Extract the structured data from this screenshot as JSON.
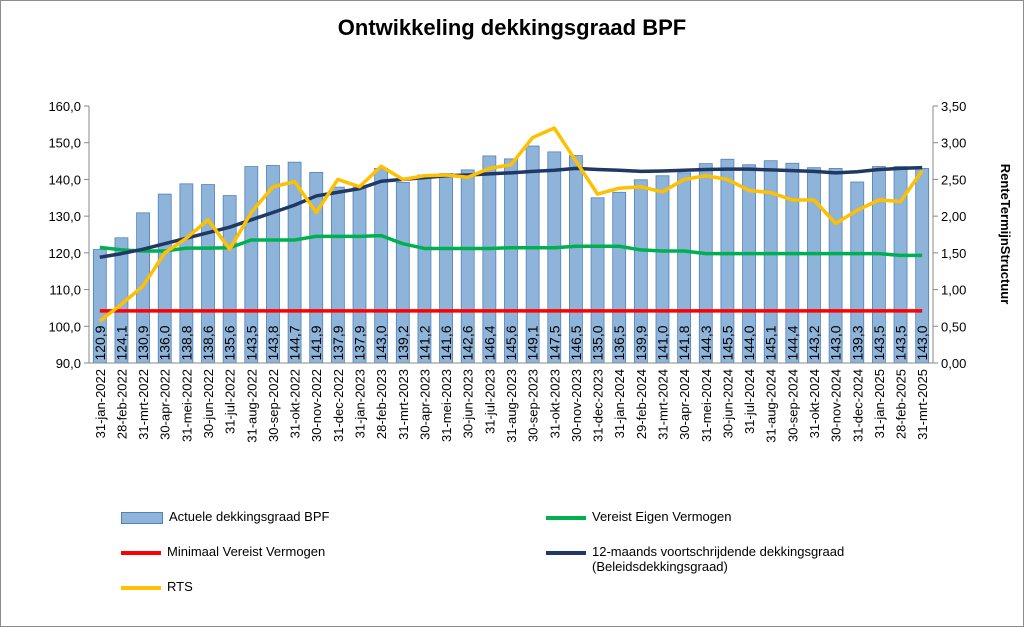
{
  "chart_data": {
    "type": "combo",
    "title": "Ontwikkeling dekkingsgraad BPF",
    "y2label": "RenteTermijnStructuur",
    "categories": [
      "31-jan-2022",
      "28-feb-2022",
      "31-mrt-2022",
      "30-apr-2022",
      "31-mei-2022",
      "30-jun-2022",
      "31-jul-2022",
      "31-aug-2022",
      "30-sep-2022",
      "31-okt-2022",
      "30-nov-2022",
      "31-dec-2022",
      "31-jan-2023",
      "28-feb-2023",
      "31-mrt-2023",
      "30-apr-2023",
      "31-mei-2023",
      "30-jun-2023",
      "31-jul-2023",
      "31-aug-2023",
      "30-sep-2023",
      "31-okt-2023",
      "30-nov-2023",
      "31-dec-2023",
      "31-jan-2024",
      "29-feb-2024",
      "31-mrt-2024",
      "30-apr-2024",
      "31-mei-2024",
      "30-jun-2024",
      "31-jul-2024",
      "31-aug-2024",
      "30-sep-2024",
      "31-okt-2024",
      "30-nov-2024",
      "31-dec-2024",
      "31-jan-2025",
      "28-feb-2025",
      "31-mrt-2025"
    ],
    "series": [
      {
        "name": "Actuele dekkingsgraad BPF",
        "type": "bar",
        "color": "#8fb4d9",
        "values": [
          120.9,
          124.1,
          130.9,
          136.0,
          138.8,
          138.6,
          135.6,
          143.5,
          143.8,
          144.7,
          141.9,
          137.9,
          137.9,
          143.0,
          139.2,
          141.2,
          141.6,
          142.6,
          146.4,
          145.6,
          149.1,
          147.5,
          146.5,
          135.0,
          136.5,
          139.9,
          141.0,
          141.8,
          144.3,
          145.5,
          144.0,
          145.1,
          144.4,
          143.2,
          143.0,
          139.3,
          143.5,
          143.5,
          143.0
        ],
        "value_labels": [
          "120,9",
          "124,1",
          "130,9",
          "136,0",
          "138,8",
          "138,6",
          "135,6",
          "143,5",
          "143,8",
          "144,7",
          "141,9",
          "137,9",
          "137,9",
          "143,0",
          "139,2",
          "141,2",
          "141,6",
          "142,6",
          "146,4",
          "145,6",
          "149,1",
          "147,5",
          "146,5",
          "135,0",
          "136,5",
          "139,9",
          "141,0",
          "141,8",
          "144,3",
          "145,5",
          "144,0",
          "145,1",
          "144,4",
          "143,2",
          "143,0",
          "139,3",
          "143,5",
          "143,5",
          "143,0"
        ]
      },
      {
        "name": "Vereist Eigen Vermogen",
        "type": "line",
        "color": "#00b050",
        "values": [
          121.5,
          120.8,
          120.5,
          120.5,
          121.3,
          121.3,
          121.4,
          123.5,
          123.5,
          123.5,
          124.5,
          124.5,
          124.5,
          124.7,
          122.5,
          121.2,
          121.2,
          121.2,
          121.2,
          121.4,
          121.4,
          121.4,
          121.8,
          121.8,
          121.8,
          120.8,
          120.5,
          120.5,
          119.8,
          119.8,
          119.8,
          119.8,
          119.8,
          119.8,
          119.8,
          119.8,
          119.8,
          119.3,
          119.3
        ]
      },
      {
        "name": "Minimaal Vereist Vermogen",
        "type": "line",
        "color": "#ff0000",
        "values": [
          104.2,
          104.2,
          104.2,
          104.2,
          104.2,
          104.2,
          104.2,
          104.2,
          104.2,
          104.2,
          104.2,
          104.2,
          104.2,
          104.2,
          104.2,
          104.2,
          104.2,
          104.2,
          104.2,
          104.2,
          104.2,
          104.2,
          104.2,
          104.2,
          104.2,
          104.2,
          104.2,
          104.2,
          104.2,
          104.2,
          104.2,
          104.2,
          104.2,
          104.2,
          104.2,
          104.2,
          104.2,
          104.2,
          104.2
        ]
      },
      {
        "name": "12-maands voortschrijdende dekkingsgraad (Beleidsdekkingsgraad)",
        "type": "line",
        "color": "#1f3864",
        "values": [
          118.8,
          119.8,
          121.0,
          122.5,
          124.0,
          125.5,
          127.0,
          129.0,
          131.0,
          133.0,
          135.5,
          136.5,
          137.5,
          139.5,
          140.0,
          140.5,
          141.0,
          141.2,
          141.5,
          141.8,
          142.2,
          142.5,
          143.0,
          142.7,
          142.5,
          142.2,
          142.3,
          142.5,
          142.7,
          142.8,
          142.8,
          142.6,
          142.4,
          142.2,
          141.8,
          142.1,
          142.7,
          143.0,
          143.2
        ]
      },
      {
        "name": "RTS",
        "type": "line",
        "color": "#ffc000",
        "axis": "y2",
        "values": [
          0.57,
          0.8,
          1.05,
          1.5,
          1.7,
          1.95,
          1.55,
          2.05,
          2.4,
          2.47,
          2.05,
          2.5,
          2.4,
          2.68,
          2.5,
          2.55,
          2.56,
          2.53,
          2.65,
          2.7,
          3.07,
          3.2,
          2.75,
          2.3,
          2.38,
          2.4,
          2.33,
          2.5,
          2.55,
          2.5,
          2.35,
          2.32,
          2.22,
          2.22,
          1.9,
          2.08,
          2.22,
          2.2,
          2.62
        ]
      }
    ],
    "ylim": [
      90,
      160
    ],
    "yticks": [
      {
        "value": 90,
        "label": "90,0"
      },
      {
        "value": 100,
        "label": "100,0"
      },
      {
        "value": 110,
        "label": "110,0"
      },
      {
        "value": 120,
        "label": "120,0"
      },
      {
        "value": 130,
        "label": "130,0"
      },
      {
        "value": 140,
        "label": "140,0"
      },
      {
        "value": 150,
        "label": "150,0"
      },
      {
        "value": 160,
        "label": "160,0"
      }
    ],
    "y2lim": [
      0,
      3.5
    ],
    "y2ticks": [
      {
        "value": 0,
        "label": "0,00"
      },
      {
        "value": 0.5,
        "label": "0,50"
      },
      {
        "value": 1,
        "label": "1,00"
      },
      {
        "value": 1.5,
        "label": "1,50"
      },
      {
        "value": 2,
        "label": "2,00"
      },
      {
        "value": 2.5,
        "label": "2,50"
      },
      {
        "value": 3,
        "label": "3,00"
      },
      {
        "value": 3.5,
        "label": "3,50"
      }
    ],
    "grid": false
  }
}
